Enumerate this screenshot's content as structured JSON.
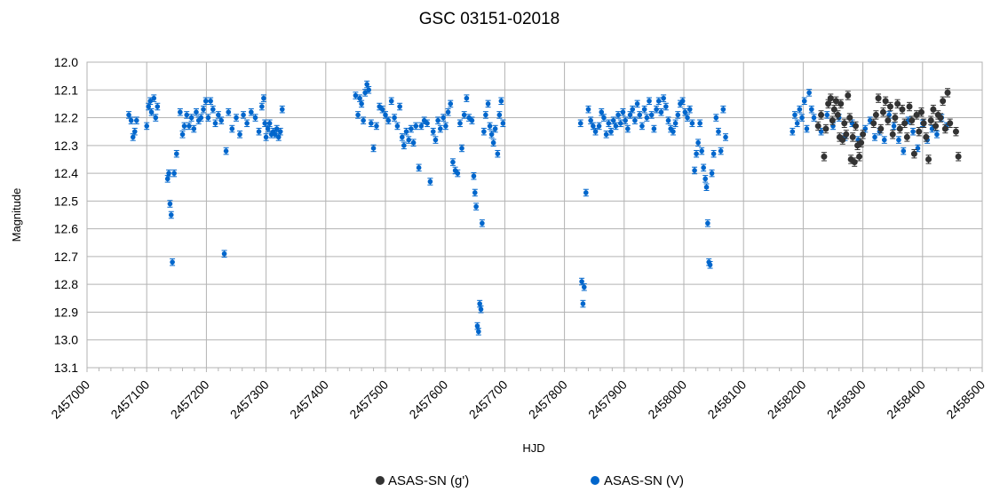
{
  "chart_data": {
    "type": "scatter",
    "title": "GSC 03151-02018",
    "xlabel": "HJD",
    "ylabel": "Magnitude",
    "xlim": [
      2457000,
      2458500
    ],
    "ylim": [
      12.0,
      13.1
    ],
    "y_reversed": true,
    "x_ticks": [
      "2457000",
      "2457100",
      "2457200",
      "2457300",
      "2457400",
      "2457500",
      "2457600",
      "2457700",
      "2457800",
      "2457900",
      "2458000",
      "2458100",
      "2458200",
      "2458300",
      "2458400",
      "2458500"
    ],
    "y_ticks": [
      "12.0",
      "12.1",
      "12.2",
      "12.3",
      "12.4",
      "12.5",
      "12.6",
      "12.7",
      "12.8",
      "12.9",
      "13.0",
      "13.1"
    ],
    "grid": true,
    "legend_position": "bottom",
    "series": [
      {
        "name": "ASAS-SN (g')",
        "color": "#333333",
        "points": [
          [
            2458225,
            12.23
          ],
          [
            2458230,
            12.19
          ],
          [
            2458235,
            12.34
          ],
          [
            2458238,
            12.24
          ],
          [
            2458242,
            12.15
          ],
          [
            2458246,
            12.13
          ],
          [
            2458249,
            12.21
          ],
          [
            2458252,
            12.17
          ],
          [
            2458255,
            12.14
          ],
          [
            2458258,
            12.19
          ],
          [
            2458261,
            12.27
          ],
          [
            2458263,
            12.15
          ],
          [
            2458266,
            12.28
          ],
          [
            2458269,
            12.22
          ],
          [
            2458272,
            12.26
          ],
          [
            2458275,
            12.12
          ],
          [
            2458278,
            12.2
          ],
          [
            2458280,
            12.35
          ],
          [
            2458283,
            12.27
          ],
          [
            2458286,
            12.36
          ],
          [
            2458288,
            12.23
          ],
          [
            2458291,
            12.3
          ],
          [
            2458294,
            12.34
          ],
          [
            2458297,
            12.29
          ],
          [
            2458300,
            12.26
          ],
          [
            2458318,
            12.22
          ],
          [
            2458322,
            12.19
          ],
          [
            2458326,
            12.13
          ],
          [
            2458330,
            12.24
          ],
          [
            2458334,
            12.18
          ],
          [
            2458338,
            12.14
          ],
          [
            2458342,
            12.21
          ],
          [
            2458346,
            12.16
          ],
          [
            2458350,
            12.26
          ],
          [
            2458354,
            12.2
          ],
          [
            2458358,
            12.15
          ],
          [
            2458362,
            12.24
          ],
          [
            2458366,
            12.17
          ],
          [
            2458370,
            12.22
          ],
          [
            2458374,
            12.27
          ],
          [
            2458378,
            12.16
          ],
          [
            2458382,
            12.21
          ],
          [
            2458386,
            12.33
          ],
          [
            2458390,
            12.19
          ],
          [
            2458394,
            12.25
          ],
          [
            2458398,
            12.18
          ],
          [
            2458402,
            12.22
          ],
          [
            2458406,
            12.27
          ],
          [
            2458410,
            12.35
          ],
          [
            2458414,
            12.21
          ],
          [
            2458418,
            12.17
          ],
          [
            2458422,
            12.23
          ],
          [
            2458426,
            12.19
          ],
          [
            2458430,
            12.2
          ],
          [
            2458434,
            12.14
          ],
          [
            2458438,
            12.24
          ],
          [
            2458442,
            12.11
          ],
          [
            2458446,
            12.22
          ],
          [
            2458456,
            12.25
          ],
          [
            2458460,
            12.34
          ]
        ]
      },
      {
        "name": "ASAS-SN (V)",
        "color": "#0066cc",
        "points": [
          [
            2457070,
            12.19
          ],
          [
            2457074,
            12.21
          ],
          [
            2457077,
            12.27
          ],
          [
            2457080,
            12.25
          ],
          [
            2457083,
            12.21
          ],
          [
            2457100,
            12.23
          ],
          [
            2457103,
            12.16
          ],
          [
            2457106,
            12.14
          ],
          [
            2457108,
            12.18
          ],
          [
            2457112,
            12.13
          ],
          [
            2457115,
            12.2
          ],
          [
            2457118,
            12.16
          ],
          [
            2457135,
            12.42
          ],
          [
            2457137,
            12.4
          ],
          [
            2457139,
            12.51
          ],
          [
            2457141,
            12.55
          ],
          [
            2457143,
            12.72
          ],
          [
            2457146,
            12.4
          ],
          [
            2457150,
            12.33
          ],
          [
            2457156,
            12.18
          ],
          [
            2457160,
            12.26
          ],
          [
            2457163,
            12.23
          ],
          [
            2457167,
            12.19
          ],
          [
            2457171,
            12.23
          ],
          [
            2457175,
            12.2
          ],
          [
            2457179,
            12.24
          ],
          [
            2457183,
            12.18
          ],
          [
            2457187,
            12.21
          ],
          [
            2457191,
            12.2
          ],
          [
            2457195,
            12.17
          ],
          [
            2457199,
            12.14
          ],
          [
            2457203,
            12.2
          ],
          [
            2457207,
            12.14
          ],
          [
            2457211,
            12.17
          ],
          [
            2457215,
            12.22
          ],
          [
            2457220,
            12.19
          ],
          [
            2457225,
            12.21
          ],
          [
            2457230,
            12.69
          ],
          [
            2457233,
            12.32
          ],
          [
            2457237,
            12.18
          ],
          [
            2457243,
            12.24
          ],
          [
            2457250,
            12.2
          ],
          [
            2457256,
            12.26
          ],
          [
            2457262,
            12.19
          ],
          [
            2457268,
            12.22
          ],
          [
            2457275,
            12.18
          ],
          [
            2457282,
            12.2
          ],
          [
            2457288,
            12.25
          ],
          [
            2457293,
            12.16
          ],
          [
            2457296,
            12.13
          ],
          [
            2457298,
            12.22
          ],
          [
            2457300,
            12.27
          ],
          [
            2457303,
            12.24
          ],
          [
            2457306,
            12.22
          ],
          [
            2457309,
            12.26
          ],
          [
            2457312,
            12.25
          ],
          [
            2457315,
            12.26
          ],
          [
            2457318,
            12.24
          ],
          [
            2457321,
            12.27
          ],
          [
            2457324,
            12.25
          ],
          [
            2457327,
            12.17
          ],
          [
            2457450,
            12.12
          ],
          [
            2457454,
            12.19
          ],
          [
            2457457,
            12.13
          ],
          [
            2457460,
            12.15
          ],
          [
            2457463,
            12.21
          ],
          [
            2457466,
            12.11
          ],
          [
            2457469,
            12.08
          ],
          [
            2457472,
            12.1
          ],
          [
            2457476,
            12.22
          ],
          [
            2457480,
            12.31
          ],
          [
            2457485,
            12.23
          ],
          [
            2457490,
            12.16
          ],
          [
            2457495,
            12.17
          ],
          [
            2457500,
            12.19
          ],
          [
            2457505,
            12.21
          ],
          [
            2457510,
            12.14
          ],
          [
            2457515,
            12.2
          ],
          [
            2457520,
            12.23
          ],
          [
            2457524,
            12.16
          ],
          [
            2457528,
            12.27
          ],
          [
            2457531,
            12.3
          ],
          [
            2457535,
            12.25
          ],
          [
            2457539,
            12.28
          ],
          [
            2457543,
            12.24
          ],
          [
            2457547,
            12.29
          ],
          [
            2457551,
            12.23
          ],
          [
            2457556,
            12.38
          ],
          [
            2457560,
            12.23
          ],
          [
            2457565,
            12.21
          ],
          [
            2457570,
            12.22
          ],
          [
            2457575,
            12.43
          ],
          [
            2457580,
            12.25
          ],
          [
            2457584,
            12.28
          ],
          [
            2457588,
            12.21
          ],
          [
            2457592,
            12.24
          ],
          [
            2457597,
            12.2
          ],
          [
            2457601,
            12.23
          ],
          [
            2457605,
            12.18
          ],
          [
            2457609,
            12.15
          ],
          [
            2457613,
            12.36
          ],
          [
            2457617,
            12.39
          ],
          [
            2457621,
            12.4
          ],
          [
            2457625,
            12.22
          ],
          [
            2457628,
            12.31
          ],
          [
            2457632,
            12.19
          ],
          [
            2457636,
            12.13
          ],
          [
            2457640,
            12.2
          ],
          [
            2457645,
            12.21
          ],
          [
            2457648,
            12.41
          ],
          [
            2457650,
            12.47
          ],
          [
            2457652,
            12.52
          ],
          [
            2457654,
            12.95
          ],
          [
            2457656,
            12.97
          ],
          [
            2457658,
            12.87
          ],
          [
            2457660,
            12.89
          ],
          [
            2457662,
            12.58
          ],
          [
            2457665,
            12.25
          ],
          [
            2457668,
            12.19
          ],
          [
            2457672,
            12.15
          ],
          [
            2457675,
            12.23
          ],
          [
            2457678,
            12.26
          ],
          [
            2457681,
            12.29
          ],
          [
            2457684,
            12.24
          ],
          [
            2457688,
            12.33
          ],
          [
            2457691,
            12.19
          ],
          [
            2457694,
            12.14
          ],
          [
            2457697,
            12.22
          ],
          [
            2457827,
            12.22
          ],
          [
            2457829,
            12.79
          ],
          [
            2457831,
            12.87
          ],
          [
            2457833,
            12.81
          ],
          [
            2457836,
            12.47
          ],
          [
            2457840,
            12.17
          ],
          [
            2457844,
            12.21
          ],
          [
            2457848,
            12.23
          ],
          [
            2457852,
            12.25
          ],
          [
            2457858,
            12.23
          ],
          [
            2457862,
            12.18
          ],
          [
            2457866,
            12.2
          ],
          [
            2457870,
            12.26
          ],
          [
            2457874,
            12.22
          ],
          [
            2457878,
            12.25
          ],
          [
            2457882,
            12.21
          ],
          [
            2457886,
            12.23
          ],
          [
            2457890,
            12.19
          ],
          [
            2457894,
            12.22
          ],
          [
            2457898,
            12.18
          ],
          [
            2457902,
            12.21
          ],
          [
            2457906,
            12.24
          ],
          [
            2457910,
            12.19
          ],
          [
            2457914,
            12.17
          ],
          [
            2457918,
            12.21
          ],
          [
            2457922,
            12.15
          ],
          [
            2457926,
            12.19
          ],
          [
            2457930,
            12.23
          ],
          [
            2457934,
            12.17
          ],
          [
            2457938,
            12.2
          ],
          [
            2457942,
            12.14
          ],
          [
            2457946,
            12.19
          ],
          [
            2457950,
            12.24
          ],
          [
            2457954,
            12.17
          ],
          [
            2457958,
            12.14
          ],
          [
            2457962,
            12.18
          ],
          [
            2457966,
            12.13
          ],
          [
            2457970,
            12.16
          ],
          [
            2457974,
            12.21
          ],
          [
            2457978,
            12.24
          ],
          [
            2457982,
            12.25
          ],
          [
            2457986,
            12.22
          ],
          [
            2457990,
            12.19
          ],
          [
            2457994,
            12.15
          ],
          [
            2457998,
            12.14
          ],
          [
            2458002,
            12.18
          ],
          [
            2458006,
            12.2
          ],
          [
            2458010,
            12.17
          ],
          [
            2458014,
            12.22
          ],
          [
            2458018,
            12.39
          ],
          [
            2458021,
            12.33
          ],
          [
            2458024,
            12.29
          ],
          [
            2458027,
            12.22
          ],
          [
            2458030,
            12.32
          ],
          [
            2458033,
            12.38
          ],
          [
            2458036,
            12.42
          ],
          [
            2458038,
            12.45
          ],
          [
            2458040,
            12.58
          ],
          [
            2458042,
            12.72
          ],
          [
            2458044,
            12.73
          ],
          [
            2458047,
            12.4
          ],
          [
            2458050,
            12.33
          ],
          [
            2458054,
            12.2
          ],
          [
            2458058,
            12.25
          ],
          [
            2458062,
            12.32
          ],
          [
            2458066,
            12.17
          ],
          [
            2458070,
            12.27
          ],
          [
            2458182,
            12.25
          ],
          [
            2458186,
            12.19
          ],
          [
            2458190,
            12.22
          ],
          [
            2458194,
            12.17
          ],
          [
            2458198,
            12.2
          ],
          [
            2458202,
            12.14
          ],
          [
            2458206,
            12.24
          ],
          [
            2458210,
            12.11
          ],
          [
            2458214,
            12.17
          ],
          [
            2458218,
            12.2
          ],
          [
            2458230,
            12.25
          ],
          [
            2458240,
            12.19
          ],
          [
            2458250,
            12.23
          ],
          [
            2458260,
            12.2
          ],
          [
            2458270,
            12.27
          ],
          [
            2458282,
            12.22
          ],
          [
            2458292,
            12.28
          ],
          [
            2458304,
            12.24
          ],
          [
            2458312,
            12.21
          ],
          [
            2458320,
            12.27
          ],
          [
            2458328,
            12.25
          ],
          [
            2458336,
            12.28
          ],
          [
            2458344,
            12.19
          ],
          [
            2458352,
            12.23
          ],
          [
            2458360,
            12.28
          ],
          [
            2458368,
            12.32
          ],
          [
            2458376,
            12.21
          ],
          [
            2458384,
            12.25
          ],
          [
            2458392,
            12.31
          ],
          [
            2458400,
            12.22
          ],
          [
            2458408,
            12.28
          ],
          [
            2458416,
            12.24
          ],
          [
            2458424,
            12.26
          ],
          [
            2458432,
            12.2
          ],
          [
            2458440,
            12.23
          ]
        ]
      }
    ]
  }
}
